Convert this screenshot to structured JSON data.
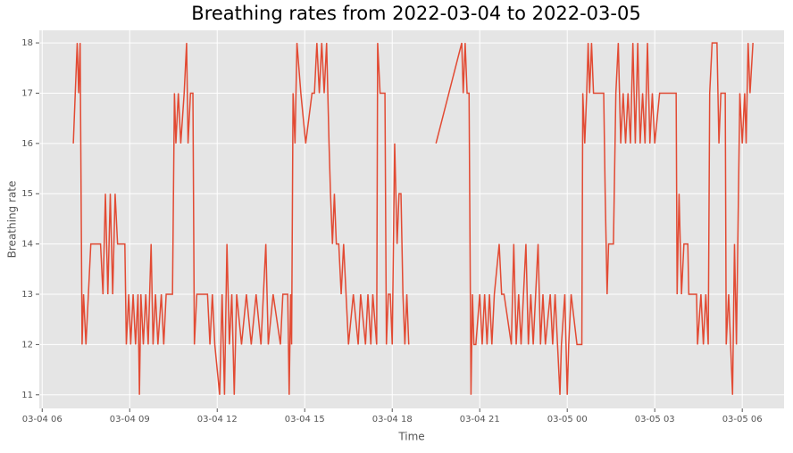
{
  "chart_data": {
    "type": "line",
    "title": "Breathing rates from 2022-03-04 to 2022-03-05",
    "xlabel": "Time",
    "ylabel": "Breathing rate",
    "color": "#e24a33",
    "grid": true,
    "xlim": [
      "03-04 05:54",
      "03-05 07:26"
    ],
    "xticks": [
      "03-04 06",
      "03-04 09",
      "03-04 12",
      "03-04 15",
      "03-04 18",
      "03-04 21",
      "03-05 00",
      "03-05 03",
      "03-05 06"
    ],
    "ylim": [
      10.73,
      18.25
    ],
    "yticks": [
      11,
      12,
      13,
      14,
      15,
      16,
      17,
      18
    ],
    "x": [
      "03-04 07:04",
      "03-04 07:08",
      "03-04 07:12",
      "03-04 07:15",
      "03-04 07:18",
      "03-04 07:22",
      "03-04 07:25",
      "03-04 07:30",
      "03-04 07:35",
      "03-04 07:40",
      "03-04 08:00",
      "03-04 08:05",
      "03-04 08:10",
      "03-04 08:15",
      "03-04 08:20",
      "03-04 08:25",
      "03-04 08:30",
      "03-04 08:35",
      "03-04 08:50",
      "03-04 08:53",
      "03-04 08:58",
      "03-04 09:02",
      "03-04 09:07",
      "03-04 09:12",
      "03-04 09:17",
      "03-04 09:20",
      "03-04 09:23",
      "03-04 09:28",
      "03-04 09:33",
      "03-04 09:38",
      "03-04 09:44",
      "03-04 09:48",
      "03-04 09:53",
      "03-04 09:58",
      "03-04 10:05",
      "03-04 10:10",
      "03-04 10:15",
      "03-04 10:28",
      "03-04 10:32",
      "03-04 10:35",
      "03-04 10:40",
      "03-04 10:45",
      "03-04 10:52",
      "03-04 10:57",
      "03-04 11:00",
      "03-04 11:05",
      "03-04 11:10",
      "03-04 11:13",
      "03-04 11:18",
      "03-04 11:40",
      "03-04 11:45",
      "03-04 11:50",
      "03-04 11:55",
      "03-04 12:05",
      "03-04 12:10",
      "03-04 12:15",
      "03-04 12:20",
      "03-04 12:25",
      "03-04 12:30",
      "03-04 12:35",
      "03-04 12:40",
      "03-04 12:50",
      "03-04 13:00",
      "03-04 13:10",
      "03-04 13:20",
      "03-04 13:30",
      "03-04 13:40",
      "03-04 13:45",
      "03-04 13:55",
      "03-04 14:10",
      "03-04 14:15",
      "03-04 14:25",
      "03-04 14:28",
      "03-04 14:31",
      "03-04 14:33",
      "03-04 14:36",
      "03-04 14:40",
      "03-04 14:44",
      "03-04 14:52",
      "03-04 15:02",
      "03-04 15:15",
      "03-04 15:20",
      "03-04 15:25",
      "03-04 15:30",
      "03-04 15:35",
      "03-04 15:40",
      "03-04 15:45",
      "03-04 15:50",
      "03-04 15:53",
      "03-04 15:57",
      "03-04 16:01",
      "03-04 16:05",
      "03-04 16:10",
      "03-04 16:15",
      "03-04 16:20",
      "03-04 16:30",
      "03-04 16:40",
      "03-04 16:50",
      "03-04 16:55",
      "03-04 17:05",
      "03-04 17:10",
      "03-04 17:16",
      "03-04 17:20",
      "03-04 17:28",
      "03-04 17:30",
      "03-04 17:35",
      "03-04 17:45",
      "03-04 17:48",
      "03-04 17:52",
      "03-04 17:56",
      "03-04 18:00",
      "03-04 18:05",
      "03-04 18:10",
      "03-04 18:14",
      "03-04 18:18",
      "03-04 18:22",
      "03-04 18:26",
      "03-04 18:30",
      "03-04 18:34",
      "03-04 18:39",
      "03-04 19:30",
      "03-04 20:23",
      "03-04 20:26",
      "03-04 20:30",
      "03-04 20:34",
      "03-04 20:38",
      "03-04 20:42",
      "03-04 20:45",
      "03-04 20:48",
      "03-04 20:52",
      "03-04 21:00",
      "03-04 21:05",
      "03-04 21:10",
      "03-04 21:15",
      "03-04 21:20",
      "03-04 21:25",
      "03-04 21:30",
      "03-04 21:40",
      "03-04 21:45",
      "03-04 21:50",
      "03-04 22:05",
      "03-04 22:10",
      "03-04 22:15",
      "03-04 22:20",
      "03-04 22:25",
      "03-04 22:35",
      "03-04 22:40",
      "03-04 22:45",
      "03-04 22:50",
      "03-04 23:00",
      "03-04 23:05",
      "03-04 23:10",
      "03-04 23:15",
      "03-04 23:25",
      "03-04 23:30",
      "03-04 23:35",
      "03-04 23:45",
      "03-04 23:48",
      "03-04 23:55",
      "03-05 00:00",
      "03-05 00:03",
      "03-05 00:08",
      "03-05 00:20",
      "03-05 00:30",
      "03-05 00:32",
      "03-05 00:36",
      "03-05 00:40",
      "03-05 00:43",
      "03-05 00:46",
      "03-05 00:50",
      "03-05 00:54",
      "03-05 01:15",
      "03-05 01:18",
      "03-05 01:22",
      "03-05 01:25",
      "03-05 01:35",
      "03-05 01:40",
      "03-05 01:45",
      "03-05 01:50",
      "03-05 01:55",
      "03-05 02:00",
      "03-05 02:05",
      "03-05 02:10",
      "03-05 02:15",
      "03-05 02:20",
      "03-05 02:25",
      "03-05 02:30",
      "03-05 02:35",
      "03-05 02:40",
      "03-05 02:45",
      "03-05 02:50",
      "03-05 02:55",
      "03-05 03:00",
      "03-05 03:10",
      "03-05 03:44",
      "03-05 03:46",
      "03-05 03:50",
      "03-05 03:55",
      "03-05 04:00",
      "03-05 04:08",
      "03-05 04:10",
      "03-05 04:26",
      "03-05 04:28",
      "03-05 04:35",
      "03-05 04:40",
      "03-05 04:45",
      "03-05 04:50",
      "03-05 04:53",
      "03-05 04:58",
      "03-05 05:08",
      "03-05 05:12",
      "03-05 05:16",
      "03-05 05:25",
      "03-05 05:27",
      "03-05 05:32",
      "03-05 05:36",
      "03-05 05:40",
      "03-05 05:44",
      "03-05 05:48",
      "03-05 05:55",
      "03-05 06:00",
      "03-05 06:05",
      "03-05 06:08",
      "03-05 06:12",
      "03-05 06:16",
      "03-05 06:22"
    ],
    "values": [
      16,
      17,
      18,
      17,
      18,
      12,
      13,
      12,
      13,
      14,
      14,
      13,
      15,
      13,
      15,
      13,
      15,
      14,
      14,
      12,
      13,
      12,
      13,
      12,
      13,
      11,
      13,
      12,
      13,
      12,
      14,
      12,
      13,
      12,
      13,
      12,
      13,
      13,
      17,
      16,
      17,
      16,
      17,
      18,
      16,
      17,
      17,
      12,
      13,
      13,
      12,
      13,
      12,
      11,
      13,
      11,
      14,
      12,
      13,
      11,
      13,
      12,
      13,
      12,
      13,
      12,
      14,
      12,
      13,
      12,
      13,
      13,
      11,
      13,
      12,
      17,
      16,
      18,
      17,
      16,
      17,
      17,
      18,
      17,
      18,
      17,
      18,
      16,
      15,
      14,
      15,
      14,
      14,
      13,
      14,
      12,
      13,
      12,
      13,
      12,
      13,
      12,
      13,
      12,
      18,
      17,
      17,
      12,
      13,
      13,
      12,
      16,
      14,
      15,
      15,
      13,
      12,
      13,
      12,
      null,
      16,
      18,
      17,
      18,
      17,
      17,
      11,
      13,
      12,
      12,
      13,
      12,
      13,
      12,
      13,
      12,
      13,
      14,
      13,
      13,
      12,
      14,
      12,
      13,
      12,
      14,
      12,
      13,
      12,
      14,
      12,
      13,
      12,
      13,
      12,
      13,
      11,
      12,
      13,
      11,
      12,
      13,
      12,
      12,
      17,
      16,
      17,
      18,
      17,
      18,
      17,
      17,
      15,
      13,
      14,
      14,
      17,
      18,
      16,
      17,
      16,
      17,
      16,
      18,
      16,
      18,
      16,
      17,
      16,
      18,
      16,
      17,
      16,
      17,
      17,
      13,
      15,
      13,
      14,
      14,
      13,
      13,
      12,
      13,
      12,
      13,
      12,
      17,
      18,
      18,
      16,
      17,
      17,
      12,
      13,
      12,
      11,
      14,
      12,
      17,
      16,
      17,
      16,
      18,
      17,
      18
    ]
  }
}
